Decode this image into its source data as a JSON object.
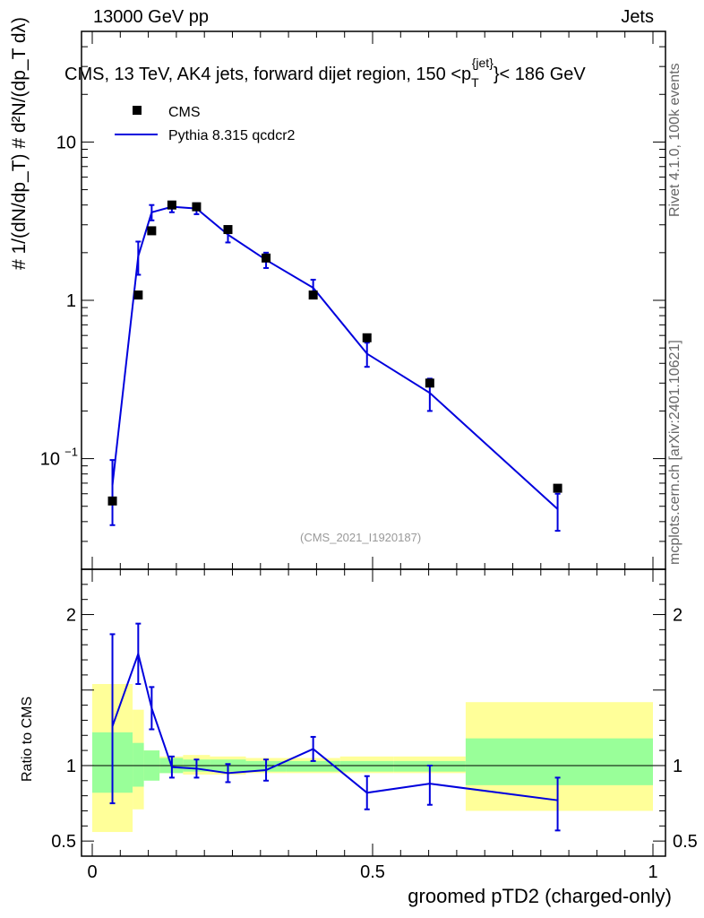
{
  "header": {
    "left": "13000 GeV pp",
    "right": "Jets"
  },
  "main_title": {
    "prefix": "CMS, 13 TeV, AK4 jets, forward dijet region, 150 <p",
    "sub": "T",
    "sup": "{jet}",
    "suffix": "}< 186 GeV"
  },
  "side_labels": {
    "rivet": "Rivet 4.1.0,  100k events",
    "mcplots": "mcplots.cern.ch [arXiv:2401.10621]"
  },
  "reference": "(CMS_2021_I1920187)",
  "colors": {
    "data": "#000000",
    "mc": "#0000dd",
    "band_inner": "#99ff99",
    "band_outer": "#ffff99"
  },
  "chart_data": [
    {
      "type": "scatter",
      "panel": "main",
      "ylabel": "1/(dN/dpT) dN²/(dpT dλ)",
      "yscale": "log",
      "ylim": [
        0.02,
        50
      ],
      "xlim": [
        0,
        1
      ],
      "yticks": [
        {
          "value": 0.1,
          "label": "10",
          "sup": "−1"
        },
        {
          "value": 1,
          "label": "1",
          "sup": ""
        },
        {
          "value": 10,
          "label": "10",
          "sup": ""
        }
      ],
      "legend": {
        "position": "top-left",
        "entries": [
          {
            "name": "CMS",
            "marker": "square"
          },
          {
            "name": "Pythia 8.315 qcdcr2",
            "marker": "line"
          }
        ]
      },
      "series": [
        {
          "name": "CMS",
          "x": [
            0.036,
            0.082,
            0.106,
            0.142,
            0.186,
            0.242,
            0.31,
            0.394,
            0.49,
            0.602,
            0.83
          ],
          "y": [
            0.054,
            1.08,
            2.75,
            4.0,
            3.9,
            2.8,
            1.85,
            1.08,
            0.58,
            0.3,
            0.065
          ]
        },
        {
          "name": "Pythia 8.315 qcdcr2",
          "x": [
            0.036,
            0.082,
            0.106,
            0.142,
            0.186,
            0.242,
            0.31,
            0.394,
            0.49,
            0.602,
            0.83
          ],
          "y": [
            0.068,
            1.9,
            3.6,
            3.9,
            3.8,
            2.6,
            1.8,
            1.2,
            0.46,
            0.26,
            0.048
          ],
          "err_lo": [
            0.03,
            0.45,
            0.4,
            0.3,
            0.3,
            0.28,
            0.2,
            0.15,
            0.08,
            0.06,
            0.013
          ],
          "err_hi": [
            0.03,
            0.45,
            0.4,
            0.3,
            0.3,
            0.28,
            0.2,
            0.15,
            0.08,
            0.06,
            0.012
          ]
        }
      ]
    },
    {
      "type": "line",
      "panel": "ratio",
      "ylabel": "Ratio to CMS",
      "xlabel": "groomed pTD2 (charged-only)",
      "ylim": [
        0.4,
        2.3
      ],
      "xlim": [
        0,
        1
      ],
      "yticks": [
        {
          "value": 0.5,
          "label": "0.5"
        },
        {
          "value": 1,
          "label": "1"
        },
        {
          "value": 2,
          "label": "2"
        }
      ],
      "xticks": [
        {
          "value": 0,
          "label": "0"
        },
        {
          "value": 0.5,
          "label": "0.5"
        },
        {
          "value": 1,
          "label": "1"
        }
      ],
      "bands": {
        "edges": [
          0.0,
          0.072,
          0.092,
          0.12,
          0.162,
          0.21,
          0.274,
          0.346,
          0.442,
          0.538,
          0.666,
          1.0
        ],
        "inner": [
          [
            0.82,
            1.22
          ],
          [
            0.86,
            1.15
          ],
          [
            0.9,
            1.1
          ],
          [
            0.95,
            1.05
          ],
          [
            0.96,
            1.04
          ],
          [
            0.96,
            1.04
          ],
          [
            0.96,
            1.03
          ],
          [
            0.96,
            1.03
          ],
          [
            0.96,
            1.03
          ],
          [
            0.96,
            1.03
          ],
          [
            0.87,
            1.18
          ]
        ],
        "outer": [
          [
            0.56,
            1.54
          ],
          [
            0.71,
            1.37
          ],
          [
            0.91,
            1.1
          ],
          [
            0.95,
            1.06
          ],
          [
            0.94,
            1.07
          ],
          [
            0.94,
            1.06
          ],
          [
            0.95,
            1.05
          ],
          [
            0.95,
            1.05
          ],
          [
            0.95,
            1.06
          ],
          [
            0.95,
            1.06
          ],
          [
            0.7,
            1.42
          ]
        ]
      },
      "series": [
        {
          "name": "Pythia 8.315 qcdcr2 / CMS",
          "x": [
            0.036,
            0.082,
            0.106,
            0.142,
            0.186,
            0.242,
            0.31,
            0.394,
            0.49,
            0.602,
            0.83
          ],
          "y": [
            1.26,
            1.74,
            1.38,
            0.99,
            0.98,
            0.95,
            0.97,
            1.11,
            0.82,
            0.88,
            0.77
          ],
          "err_lo": [
            0.51,
            0.2,
            0.14,
            0.07,
            0.06,
            0.06,
            0.07,
            0.08,
            0.11,
            0.14,
            0.2
          ],
          "err_hi": [
            0.61,
            0.2,
            0.14,
            0.07,
            0.06,
            0.06,
            0.07,
            0.08,
            0.11,
            0.12,
            0.15
          ]
        }
      ]
    }
  ]
}
